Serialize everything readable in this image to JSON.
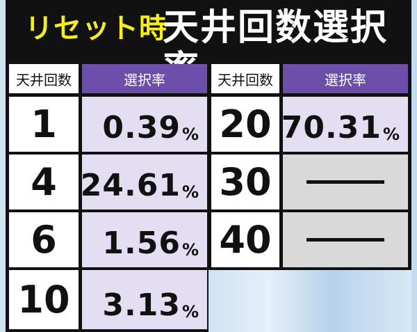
{
  "header": {
    "reset_label": "リセット時",
    "title": "天井回数選択率"
  },
  "columns": {
    "count_header": "天井回数",
    "rate_header": "選択率"
  },
  "rows_left": [
    {
      "count": "1",
      "rate": "0.39",
      "unit": "%"
    },
    {
      "count": "4",
      "rate": "24.61",
      "unit": "%"
    },
    {
      "count": "6",
      "rate": "1.56",
      "unit": "%"
    },
    {
      "count": "10",
      "rate": "3.13",
      "unit": "%"
    }
  ],
  "rows_right": [
    {
      "count": "20",
      "rate": "70.31",
      "unit": "%"
    },
    {
      "count": "30",
      "rate": "—"
    },
    {
      "count": "40",
      "rate": "—"
    }
  ],
  "colors": {
    "header_bg": "#111111",
    "reset_label": "#f7ef18",
    "rate_header_bg": "#6b4fa8",
    "rate_cell_bg": "#e3def2",
    "empty_cell_bg": "#d9d9d9"
  }
}
